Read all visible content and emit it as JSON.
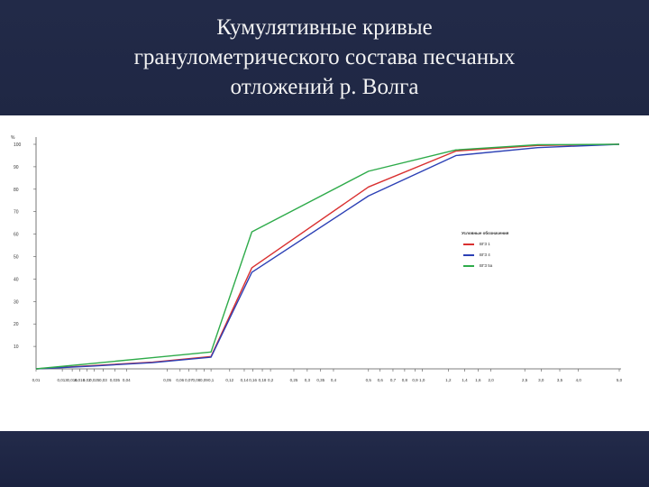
{
  "slide": {
    "title_line1": "Кумулятивные кривые",
    "title_line2": "гранулометрического состава песчаных",
    "title_line3": "отложений р. Волга"
  },
  "chart_data": {
    "type": "line",
    "title": "Кумулятивные кривые гранулометрического состава песчаных отложений р. Волга",
    "ylabel": "%",
    "ylim": [
      0,
      100
    ],
    "yticks": [
      10,
      20,
      30,
      40,
      50,
      60,
      70,
      80,
      90,
      100
    ],
    "ytick_labels": [
      "10",
      "20",
      "30",
      "40",
      "50",
      "60",
      "70",
      "80",
      "90",
      "100"
    ],
    "x_tick_labels": [
      "0,01",
      "0,013",
      "0,016",
      "0,016",
      "0,02",
      "0,025",
      "0,03",
      "0,035",
      "0,04",
      "0,05",
      "0,06",
      "0,07",
      "0,08",
      "0,09",
      "0,1",
      "0,12",
      "0,14",
      "0,16",
      "0,18",
      "0,2",
      "0,25",
      "0,3",
      "0,35",
      "0,4",
      "0,5",
      "0,6",
      "0,7",
      "0,8",
      "0,9",
      "1,0",
      "1,2",
      "1,4",
      "1,6",
      "2,0",
      "2,5",
      "3,0",
      "3,5",
      "4,0",
      "5,0"
    ],
    "x_tick_positions": [
      0,
      0.045,
      0.062,
      0.075,
      0.087,
      0.1,
      0.115,
      0.135,
      0.155,
      0.225,
      0.247,
      0.262,
      0.275,
      0.288,
      0.3,
      0.332,
      0.357,
      0.372,
      0.388,
      0.402,
      0.442,
      0.465,
      0.488,
      0.51,
      0.57,
      0.59,
      0.612,
      0.632,
      0.65,
      0.662,
      0.707,
      0.735,
      0.758,
      0.78,
      0.838,
      0.866,
      0.898,
      0.93,
      1.0
    ],
    "grid": false,
    "legend": {
      "title": "Условные обозначения",
      "placement": "right"
    },
    "series": [
      {
        "name": "ВГЗ 1",
        "color": "#d93030",
        "points": [
          [
            0,
            0
          ],
          [
            0.1,
            1.5
          ],
          [
            0.2,
            3
          ],
          [
            0.3,
            5.5
          ],
          [
            0.37,
            45
          ],
          [
            0.57,
            81
          ],
          [
            0.72,
            97
          ],
          [
            0.86,
            99.5
          ],
          [
            1.0,
            100
          ]
        ]
      },
      {
        "name": "ВГЗ 4",
        "color": "#2c40b5",
        "points": [
          [
            0,
            0
          ],
          [
            0.1,
            1.3
          ],
          [
            0.2,
            2.8
          ],
          [
            0.3,
            5.2
          ],
          [
            0.37,
            43
          ],
          [
            0.57,
            77
          ],
          [
            0.72,
            95
          ],
          [
            0.86,
            98.5
          ],
          [
            1.0,
            100
          ]
        ]
      },
      {
        "name": "ВГЗ 5а",
        "color": "#2eab4a",
        "points": [
          [
            0,
            0
          ],
          [
            0.1,
            2.5
          ],
          [
            0.2,
            5
          ],
          [
            0.3,
            7.5
          ],
          [
            0.37,
            61
          ],
          [
            0.57,
            88
          ],
          [
            0.72,
            97.5
          ],
          [
            0.86,
            99.8
          ],
          [
            1.0,
            100
          ]
        ]
      }
    ]
  }
}
